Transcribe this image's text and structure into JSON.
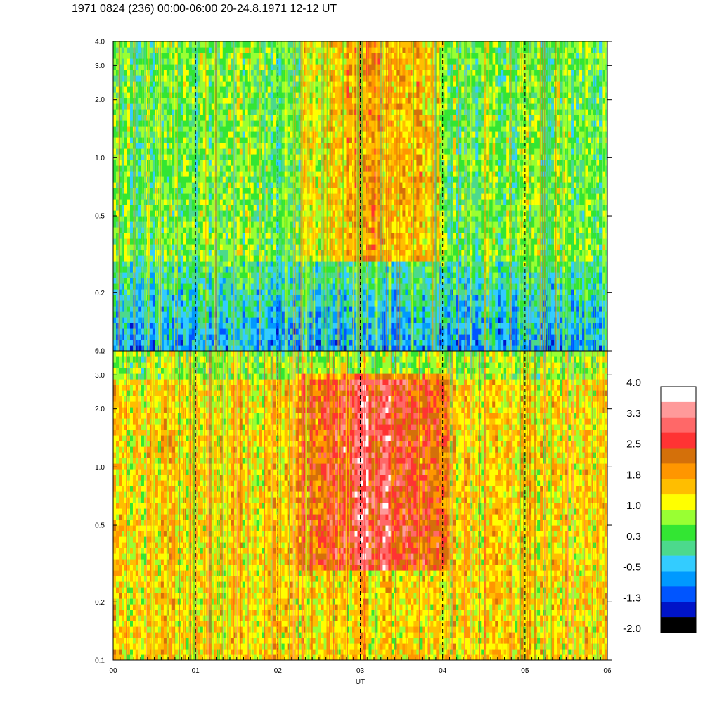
{
  "title": "1971 0824 (236) 00:00-06:00 20-24.8.1971  12-12 UT",
  "chart_data": [
    {
      "type": "heatmap",
      "panel": "upper",
      "x_range": [
        "00",
        "06"
      ],
      "y_range": [
        0.1,
        4.0
      ],
      "y_scale": "log",
      "y_tick_labels": [
        "4.0",
        "3.0",
        "2.0",
        "1.0",
        "0.5",
        "0.2",
        "0.1"
      ],
      "y_ticks": [
        4.0,
        3.0,
        2.0,
        1.0,
        0.5,
        0.2,
        0.1
      ],
      "vertical_dashed_lines_at_hours": [
        1,
        2,
        3,
        4,
        5
      ],
      "dominant_level_range": [
        -0.5,
        1.8
      ],
      "enhanced_region": {
        "hours": [
          2.3,
          4.0
        ],
        "y": [
          0.3,
          4.0
        ],
        "peak_level": 2.2
      }
    },
    {
      "type": "heatmap",
      "panel": "lower",
      "x_tick_labels": [
        "00",
        "01",
        "02",
        "03",
        "04",
        "05",
        "06"
      ],
      "x_ticks": [
        0,
        1,
        2,
        3,
        4,
        5,
        6
      ],
      "xlabel": "UT",
      "y_range": [
        0.1,
        4.0
      ],
      "y_scale": "log",
      "y_tick_labels": [
        "4.0",
        "3.0",
        "2.0",
        "1.0",
        "0.5",
        "0.2",
        "0.1"
      ],
      "y_ticks": [
        4.0,
        3.0,
        2.0,
        1.0,
        0.5,
        0.2,
        0.1
      ],
      "vertical_dashed_lines_at_hours": [
        1,
        2,
        3,
        4,
        5
      ],
      "dominant_level_range": [
        0.3,
        2.5
      ],
      "enhanced_region": {
        "hours": [
          2.2,
          4.1
        ],
        "y": [
          0.3,
          3.0
        ],
        "peak_level": 3.0
      }
    }
  ],
  "colorbar": {
    "tick_labels": [
      "4.0",
      "3.3",
      "2.5",
      "1.8",
      "1.0",
      "0.3",
      "-0.5",
      "-1.3",
      "-2.0"
    ],
    "tick_values": [
      4.0,
      3.3,
      2.5,
      1.8,
      1.0,
      0.3,
      -0.5,
      -1.3,
      -2.0
    ],
    "range": [
      -2.0,
      4.0
    ],
    "colors_top_to_bottom": [
      "#ffffff",
      "#ff9a9a",
      "#ff6868",
      "#ff3333",
      "#d4700a",
      "#ff9600",
      "#ffbe00",
      "#ffff00",
      "#99ff33",
      "#33e633",
      "#4cd98c",
      "#33ccff",
      "#0099ff",
      "#0055ff",
      "#0014c8",
      "#000000"
    ]
  }
}
